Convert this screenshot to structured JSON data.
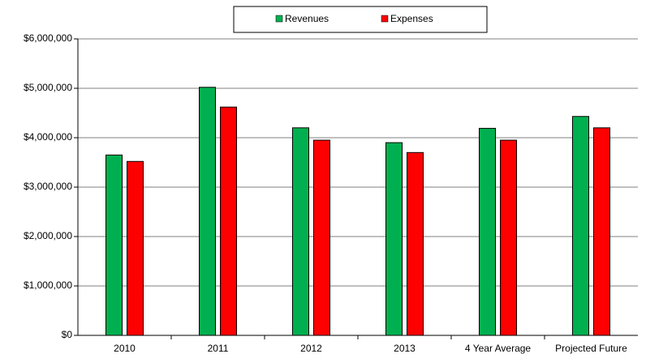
{
  "chart_data": {
    "type": "bar",
    "categories": [
      "2010",
      "2011",
      "2012",
      "2013",
      "4 Year Average",
      "Projected Future"
    ],
    "series": [
      {
        "name": "Revenues",
        "color": "#00b050",
        "values": [
          3650000,
          5020000,
          4200000,
          3900000,
          4190000,
          4430000
        ]
      },
      {
        "name": "Expenses",
        "color": "#ff0000",
        "values": [
          3520000,
          4620000,
          3950000,
          3700000,
          3950000,
          4200000
        ]
      }
    ],
    "ylim": [
      0,
      6000000
    ],
    "yticks": [
      {
        "value": 0,
        "label": "$0"
      },
      {
        "value": 1000000,
        "label": "$1,000,000"
      },
      {
        "value": 2000000,
        "label": "$2,000,000"
      },
      {
        "value": 3000000,
        "label": "$3,000,000"
      },
      {
        "value": 4000000,
        "label": "$4,000,000"
      },
      {
        "value": 5000000,
        "label": "$5,000,000"
      },
      {
        "value": 6000000,
        "label": "$6,000,000"
      }
    ],
    "grid": true,
    "legend": "top"
  }
}
